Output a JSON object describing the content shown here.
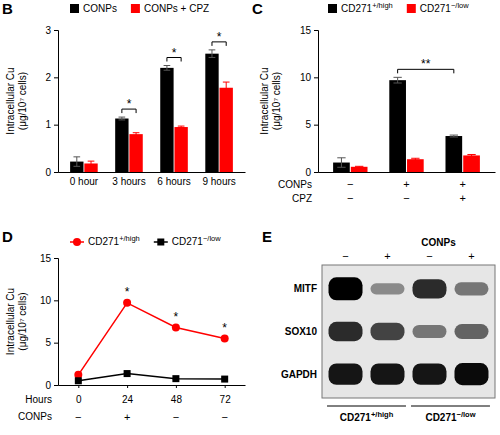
{
  "chart_data": [
    {
      "type": "bar",
      "title": "B",
      "categories": [
        "0 hour",
        "3 hours",
        "6 hours",
        "9 hours"
      ],
      "series": [
        {
          "name": "CONPs",
          "color": "#000000",
          "values": [
            0.22,
            1.13,
            2.2,
            2.5
          ],
          "errors": [
            0.1,
            0.03,
            0.05,
            0.08
          ]
        },
        {
          "name": "CONPs + CPZ",
          "color": "#ff0000",
          "values": [
            0.18,
            0.8,
            0.95,
            1.78
          ],
          "errors": [
            0.05,
            0.03,
            0.02,
            0.12
          ]
        }
      ],
      "y_label": "Intracellular Cu (μg/10⁷ cells)",
      "ylim": [
        0,
        3
      ],
      "yticks": [
        0,
        1,
        2,
        3
      ],
      "legend": "top",
      "annotations": [
        {
          "text": "*",
          "at": [
            1
          ]
        },
        {
          "text": "*",
          "at": [
            2
          ]
        },
        {
          "text": "*",
          "at": [
            3
          ]
        }
      ]
    },
    {
      "type": "bar",
      "title": "C",
      "categories": [
        null,
        null,
        null
      ],
      "series": [
        {
          "name": "CD271+/high",
          "color": "#000000",
          "values": [
            1.0,
            9.7,
            3.8
          ],
          "errors": [
            0.5,
            0.3,
            0.1
          ]
        },
        {
          "name": "CD271−/low",
          "color": "#ff0000",
          "values": [
            0.55,
            1.35,
            1.75
          ],
          "errors": [
            0.05,
            0.1,
            0.1
          ]
        }
      ],
      "y_label": "Intracellular Cu (μg/10⁷ cells)",
      "ylim": [
        0,
        15
      ],
      "yticks": [
        0,
        5,
        10,
        15
      ],
      "legend": "top",
      "conditions": [
        {
          "name": "CONPs",
          "values": [
            "−",
            "+",
            "+"
          ]
        },
        {
          "name": "CPZ",
          "values": [
            "−",
            "−",
            "+"
          ]
        }
      ],
      "annotations": [
        {
          "text": "**",
          "at": [
            1,
            2
          ],
          "series": 0
        }
      ]
    },
    {
      "type": "line",
      "title": "D",
      "x": [
        0,
        24,
        48,
        72
      ],
      "xlim": [
        -10,
        82
      ],
      "xticks": [
        0,
        24,
        48,
        72
      ],
      "x_label": "Hours",
      "series": [
        {
          "name": "CD271+/high",
          "color": "#ff0000",
          "marker": "circle",
          "values": [
            1.2,
            9.7,
            6.8,
            5.5
          ],
          "errors": [
            0.15,
            0.2,
            0.2,
            0.2
          ]
        },
        {
          "name": "CD271−/low",
          "color": "#000000",
          "marker": "square",
          "values": [
            0.5,
            1.35,
            0.75,
            0.7
          ],
          "errors": [
            0.1,
            0.1,
            0.1,
            0.1
          ]
        }
      ],
      "y_label": "Intracellular Cu (μg/10⁷ cells)",
      "ylim": [
        0,
        15
      ],
      "yticks": [
        0,
        5,
        10,
        15
      ],
      "legend": "top",
      "conditions": [
        {
          "name": "CONPs",
          "values": [
            "−",
            "+",
            "−",
            "−"
          ]
        }
      ],
      "annotations": [
        {
          "text": "*",
          "x": 24
        },
        {
          "text": "*",
          "x": 48
        },
        {
          "text": "*",
          "x": 72
        }
      ]
    },
    {
      "type": "blot",
      "title": "E",
      "conditions": [
        {
          "name": "CONPs",
          "values": [
            "−",
            "+",
            "−",
            "+"
          ]
        }
      ],
      "groups": [
        "CD271+/high",
        "CD271−/low"
      ],
      "series": [
        {
          "name": "MITF",
          "values": [
            1.0,
            0.35,
            0.8,
            0.45
          ]
        },
        {
          "name": "SOX10",
          "values": [
            0.8,
            0.7,
            0.45,
            0.55
          ]
        },
        {
          "name": "GAPDH",
          "values": [
            0.9,
            0.9,
            0.9,
            0.95
          ]
        }
      ],
      "tick_labels": false
    }
  ]
}
